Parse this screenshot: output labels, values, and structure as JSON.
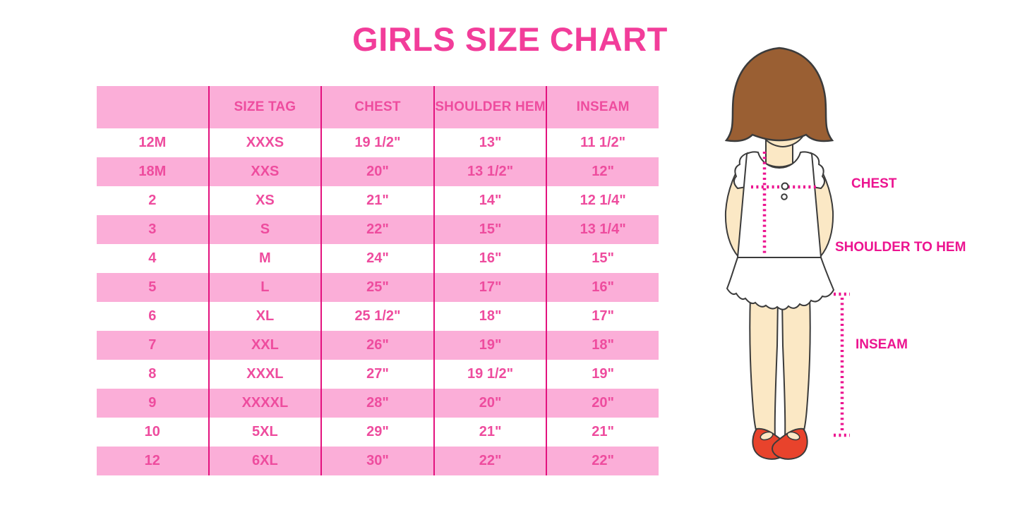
{
  "title": "GIRLS SIZE CHART",
  "table": {
    "headers": [
      "",
      "SIZE TAG",
      "CHEST",
      "SHOULDER HEM",
      "INSEAM"
    ],
    "rows": [
      [
        "12M",
        "XXXS",
        "19 1/2\"",
        "13\"",
        "11 1/2\""
      ],
      [
        "18M",
        "XXS",
        "20\"",
        "13 1/2\"",
        "12\""
      ],
      [
        "2",
        "XS",
        "21\"",
        "14\"",
        "12 1/4\""
      ],
      [
        "3",
        "S",
        "22\"",
        "15\"",
        "13 1/4\""
      ],
      [
        "4",
        "M",
        "24\"",
        "16\"",
        "15\""
      ],
      [
        "5",
        "L",
        "25\"",
        "17\"",
        "16\""
      ],
      [
        "6",
        "XL",
        "25 1/2\"",
        "18\"",
        "17\""
      ],
      [
        "7",
        "XXL",
        "26\"",
        "19\"",
        "18\""
      ],
      [
        "8",
        "XXXL",
        "27\"",
        "19 1/2\"",
        "19\""
      ],
      [
        "9",
        "XXXXL",
        "28\"",
        "20\"",
        "20\""
      ],
      [
        "10",
        "5XL",
        "29\"",
        "21\"",
        "21\""
      ],
      [
        "12",
        "6XL",
        "30\"",
        "22\"",
        "22\""
      ]
    ]
  },
  "figure_labels": {
    "chest": "CHEST",
    "shoulder_to_hem": "SHOULDER TO HEM",
    "inseam": "INSEAM"
  },
  "colors": {
    "title_pink": "#F23D9A",
    "row_pink": "#FBAED8",
    "row_white": "#FFFFFF",
    "column_border_magenta": "#E3127E",
    "table_text_pink": "#EE4C9E",
    "measure_label_magenta": "#EC1490",
    "dotted_line_magenta": "#EC1490",
    "hair_brown": "#9A5F33",
    "skin_cream": "#FBE8C5",
    "shoe_red": "#E8432C"
  }
}
